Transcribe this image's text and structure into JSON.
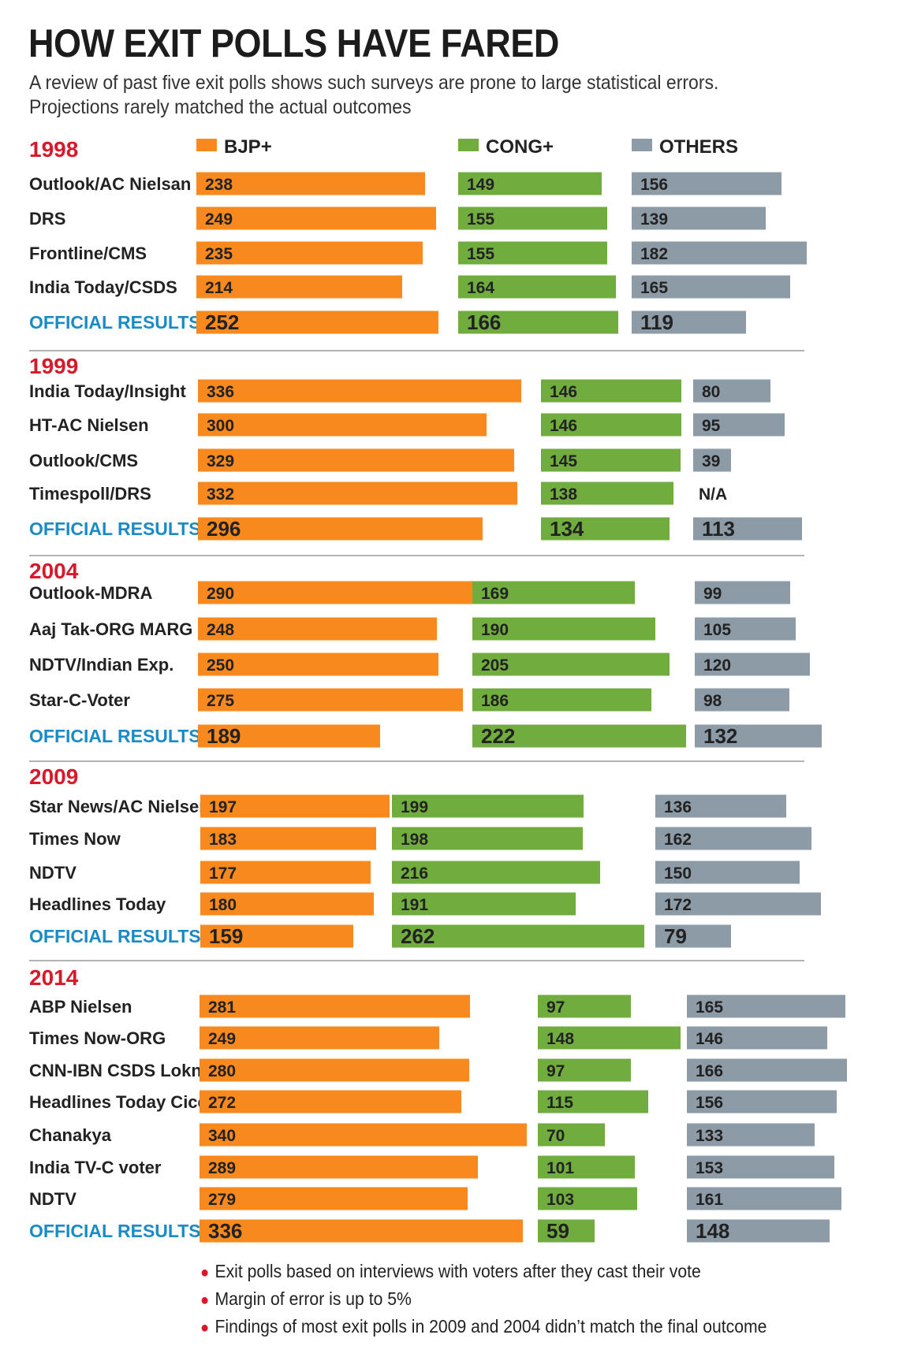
{
  "title": "HOW EXIT POLLS HAVE FARED",
  "subtitle": "A review of past five exit polls shows such surveys are prone to large statistical errors. Projections rarely matched the actual outcomes",
  "colors": {
    "bjp": "#f7891e",
    "cong": "#71ac3f",
    "others": "#8d9ba6",
    "year": "#d7192a",
    "official": "#1b8bc6",
    "text": "#222222",
    "rule": "#9a9a9a"
  },
  "chart_data": {
    "type": "bar",
    "title": "HOW EXIT POLLS HAVE FARED",
    "series_names": [
      "BJP+",
      "CONG+",
      "OTHERS"
    ],
    "groups": [
      {
        "year": "1998",
        "rows": [
          {
            "label": "Outlook/AC Nielsan",
            "values": [
              238,
              149,
              156
            ]
          },
          {
            "label": "DRS",
            "values": [
              249,
              155,
              139
            ]
          },
          {
            "label": "Frontline/CMS",
            "values": [
              235,
              155,
              182
            ]
          },
          {
            "label": "India Today/CSDS",
            "values": [
              214,
              164,
              165
            ]
          },
          {
            "label": "OFFICIAL RESULTS",
            "official": true,
            "values": [
              252,
              166,
              119
            ]
          }
        ]
      },
      {
        "year": "1999",
        "rows": [
          {
            "label": "India Today/Insight",
            "values": [
              336,
              146,
              80
            ]
          },
          {
            "label": "HT-AC Nielsen",
            "values": [
              300,
              146,
              95
            ]
          },
          {
            "label": "Outlook/CMS",
            "values": [
              329,
              145,
              39
            ]
          },
          {
            "label": "Timespoll/DRS",
            "values": [
              332,
              138,
              "N/A"
            ]
          },
          {
            "label": "OFFICIAL RESULTS",
            "official": true,
            "values": [
              296,
              134,
              113
            ]
          }
        ]
      },
      {
        "year": "2004",
        "rows": [
          {
            "label": "Outlook-MDRA",
            "values": [
              290,
              169,
              99
            ]
          },
          {
            "label": "Aaj Tak-ORG MARG",
            "values": [
              248,
              190,
              105
            ]
          },
          {
            "label": "NDTV/Indian Exp.",
            "values": [
              250,
              205,
              120
            ]
          },
          {
            "label": "Star-C-Voter",
            "values": [
              275,
              186,
              98
            ]
          },
          {
            "label": "OFFICIAL RESULTS",
            "official": true,
            "values": [
              189,
              222,
              132
            ]
          }
        ]
      },
      {
        "year": "2009",
        "rows": [
          {
            "label": "Star News/AC Nielsen",
            "values": [
              197,
              199,
              136
            ]
          },
          {
            "label": "Times Now",
            "values": [
              183,
              198,
              162
            ]
          },
          {
            "label": "NDTV",
            "values": [
              177,
              216,
              150
            ]
          },
          {
            "label": "Headlines Today",
            "values": [
              180,
              191,
              172
            ]
          },
          {
            "label": "OFFICIAL RESULTS",
            "official": true,
            "values": [
              159,
              262,
              79
            ]
          }
        ]
      },
      {
        "year": "2014",
        "rows": [
          {
            "label": "ABP Nielsen",
            "values": [
              281,
              97,
              165
            ]
          },
          {
            "label": "Times Now-ORG",
            "values": [
              249,
              148,
              146
            ]
          },
          {
            "label": "CNN-IBN CSDS Lokniti",
            "values": [
              280,
              97,
              166
            ]
          },
          {
            "label": "Headlines Today Cicero",
            "values": [
              272,
              115,
              156
            ]
          },
          {
            "label": "Chanakya",
            "values": [
              340,
              70,
              133
            ]
          },
          {
            "label": "India TV-C voter",
            "values": [
              289,
              101,
              153
            ]
          },
          {
            "label": "NDTV",
            "values": [
              279,
              103,
              161
            ]
          },
          {
            "label": "OFFICIAL RESULTS",
            "official": true,
            "values": [
              336,
              59,
              148
            ]
          }
        ]
      }
    ]
  },
  "notes": [
    "Exit polls based on interviews with voters after they cast their vote",
    "Margin of error is up to 5%",
    "Findings of most exit polls in 2009 and 2004 didn’t match the final outcome"
  ]
}
